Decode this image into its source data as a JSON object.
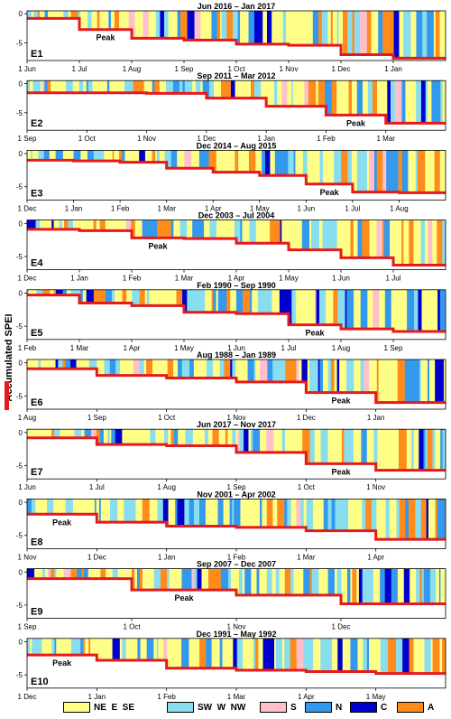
{
  "chart_data": {
    "type": "bar",
    "ylabel": "Accumulated SPEI",
    "legend": [
      {
        "label": "NE  E  SE",
        "color": "#ffff88"
      },
      {
        "label": "SW  W  NW",
        "color": "#88ddee"
      },
      {
        "label": "S",
        "color": "#ffc0cb"
      },
      {
        "label": "N",
        "color": "#3399ee"
      },
      {
        "label": "C",
        "color": "#0000cc"
      },
      {
        "label": "A",
        "color": "#ff8c1a"
      }
    ],
    "peak_label": "Peak",
    "yticks": [
      0,
      -5
    ],
    "events": [
      {
        "id": "E1",
        "title": "Jun 2016 – Jan 2017",
        "ylim": [
          -8,
          0.5
        ],
        "months": [
          "1 Jun",
          "1 Jul",
          "1 Aug",
          "1 Sep",
          "1 Oct",
          "1 Nov",
          "1 Dec",
          "1 Jan"
        ],
        "steps": [
          -0.8,
          -2.7,
          -4.2,
          -4.5,
          -5.2,
          -5.4,
          -7.0,
          -7.6
        ],
        "peak_month": 1
      },
      {
        "id": "E2",
        "title": "Sep 2011 – Mar 2012",
        "ylim": [
          -8,
          0.5
        ],
        "months": [
          "1 Sep",
          "1 Oct",
          "1 Nov",
          "1 Dec",
          "1 Jan",
          "1 Feb",
          "1 Mar"
        ],
        "steps": [
          -1.6,
          -1.6,
          -1.7,
          -2.5,
          -3.9,
          -5.4,
          -6.8
        ],
        "peak_month": 5
      },
      {
        "id": "E3",
        "title": "Dec 2014 – Aug 2015",
        "ylim": [
          -7,
          0.5
        ],
        "months": [
          "1 Dec",
          "1 Jan",
          "1 Feb",
          "1 Mar",
          "1 Apr",
          "1 May",
          "1 Jun",
          "1 Jul",
          "1 Aug"
        ],
        "steps": [
          -1.0,
          -1.1,
          -1.3,
          -2.2,
          -2.8,
          -3.3,
          -4.6,
          -5.8,
          -5.9
        ],
        "peak_month": 6
      },
      {
        "id": "E4",
        "title": "Dec 2003 – Jul 2004",
        "ylim": [
          -7,
          0.5
        ],
        "months": [
          "1 Dec",
          "1 Jan",
          "1 Feb",
          "1 Mar",
          "1 Apr",
          "1 May",
          "1 Jun",
          "1 Jul"
        ],
        "steps": [
          -0.9,
          -1.1,
          -2.2,
          -2.3,
          -3.0,
          -4.0,
          -5.2,
          -6.3
        ],
        "peak_month": 2
      },
      {
        "id": "E5",
        "title": "Feb 1990 – Sep 1990",
        "ylim": [
          -7,
          0.5
        ],
        "months": [
          "1 Feb",
          "1 Mar",
          "1 Apr",
          "1 May",
          "1 Jun",
          "1 Jul",
          "1 Aug",
          "1 Sep"
        ],
        "steps": [
          -0.3,
          -1.5,
          -1.9,
          -2.9,
          -3.1,
          -4.8,
          -5.4,
          -5.8
        ],
        "peak_month": 5
      },
      {
        "id": "E6",
        "title": "Aug 1988 – Jan 1989",
        "ylim": [
          -7,
          0.5
        ],
        "months": [
          "1 Aug",
          "1 Sep",
          "1 Oct",
          "1 Nov",
          "1 Dec",
          "1 Jan"
        ],
        "steps": [
          -0.9,
          -1.9,
          -2.3,
          -2.9,
          -4.5,
          -6.0
        ],
        "peak_month": 4
      },
      {
        "id": "E7",
        "title": "Jun 2017 – Nov 2017",
        "ylim": [
          -7,
          0.5
        ],
        "months": [
          "1 Jun",
          "1 Jul",
          "1 Aug",
          "1 Sep",
          "1 Oct",
          "1 Nov"
        ],
        "steps": [
          -0.8,
          -1.8,
          -2.0,
          -3.0,
          -4.7,
          -5.7
        ],
        "peak_month": 4
      },
      {
        "id": "E8",
        "title": "Nov 2001 – Apr 2002",
        "ylim": [
          -7,
          0.5
        ],
        "months": [
          "1 Nov",
          "1 Dec",
          "1 Jan",
          "1 Feb",
          "1 Mar",
          "1 Apr"
        ],
        "steps": [
          -1.8,
          -3.0,
          -3.6,
          -3.8,
          -4.3,
          -5.6
        ],
        "peak_month": 0
      },
      {
        "id": "E9",
        "title": "Sep 2007 – Dec 2007",
        "ylim": [
          -7,
          0.5
        ],
        "months": [
          "1 Sep",
          "1 Oct",
          "1 Nov",
          "1 Dec"
        ],
        "steps": [
          -1.0,
          -2.7,
          -3.5,
          -4.8
        ],
        "peak_month": 1
      },
      {
        "id": "E10",
        "title": "Dec 1991 – May 1992",
        "ylim": [
          -7,
          0.5
        ],
        "months": [
          "1 Dec",
          "1 Jan",
          "1 Feb",
          "1 Mar",
          "1 Apr",
          "1 May"
        ],
        "steps": [
          -2.0,
          -2.8,
          -4.0,
          -4.3,
          -4.5,
          -4.8
        ],
        "peak_month": 0
      }
    ]
  }
}
